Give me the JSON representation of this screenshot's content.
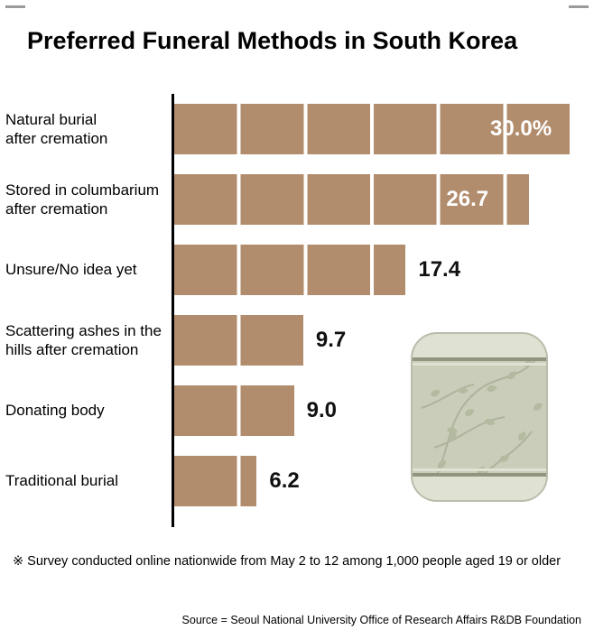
{
  "frame": {
    "corner_mark_color": "#9a9a9a"
  },
  "title": "Preferred Funeral Methods in South Korea",
  "footnote": "※ Survey conducted online nationwide from May 2 to 12 among 1,000 people aged 19 or older",
  "source": "Source = Seoul National University Office of Research Affairs R&DB Foundation",
  "chart_data": {
    "type": "bar",
    "orientation": "horizontal",
    "title": "Preferred Funeral Methods in South Korea",
    "categories": [
      "Natural burial\nafter cremation",
      "Stored in columbarium\nafter cremation",
      "Unsure/No idea yet",
      "Scattering ashes in the\nhills after cremation",
      "Donating body",
      "Traditional burial"
    ],
    "values": [
      30.0,
      26.7,
      17.4,
      9.7,
      9.0,
      6.2
    ],
    "value_labels": [
      "30.0%",
      "26.7",
      "17.4",
      "9.7",
      "9.0",
      "6.2"
    ],
    "label_inside": [
      true,
      true,
      false,
      false,
      false,
      false
    ],
    "unit": "%",
    "xlim": [
      0,
      30
    ],
    "gridline_interval": 5,
    "bar_color": "#b28d6d",
    "gridline_color": "#ffffff",
    "axis_color": "#000000",
    "legend": "none",
    "grid": "white vertical dividers every 5% inside bars"
  },
  "illustration": {
    "name": "urn-with-leaf-pattern",
    "body_color": "#c9cdba",
    "band_color": "#dfe2d3",
    "band_line_color": "#8f957f",
    "leaf_color": "#b4ba9f",
    "stem_color": "#aeb49c"
  }
}
